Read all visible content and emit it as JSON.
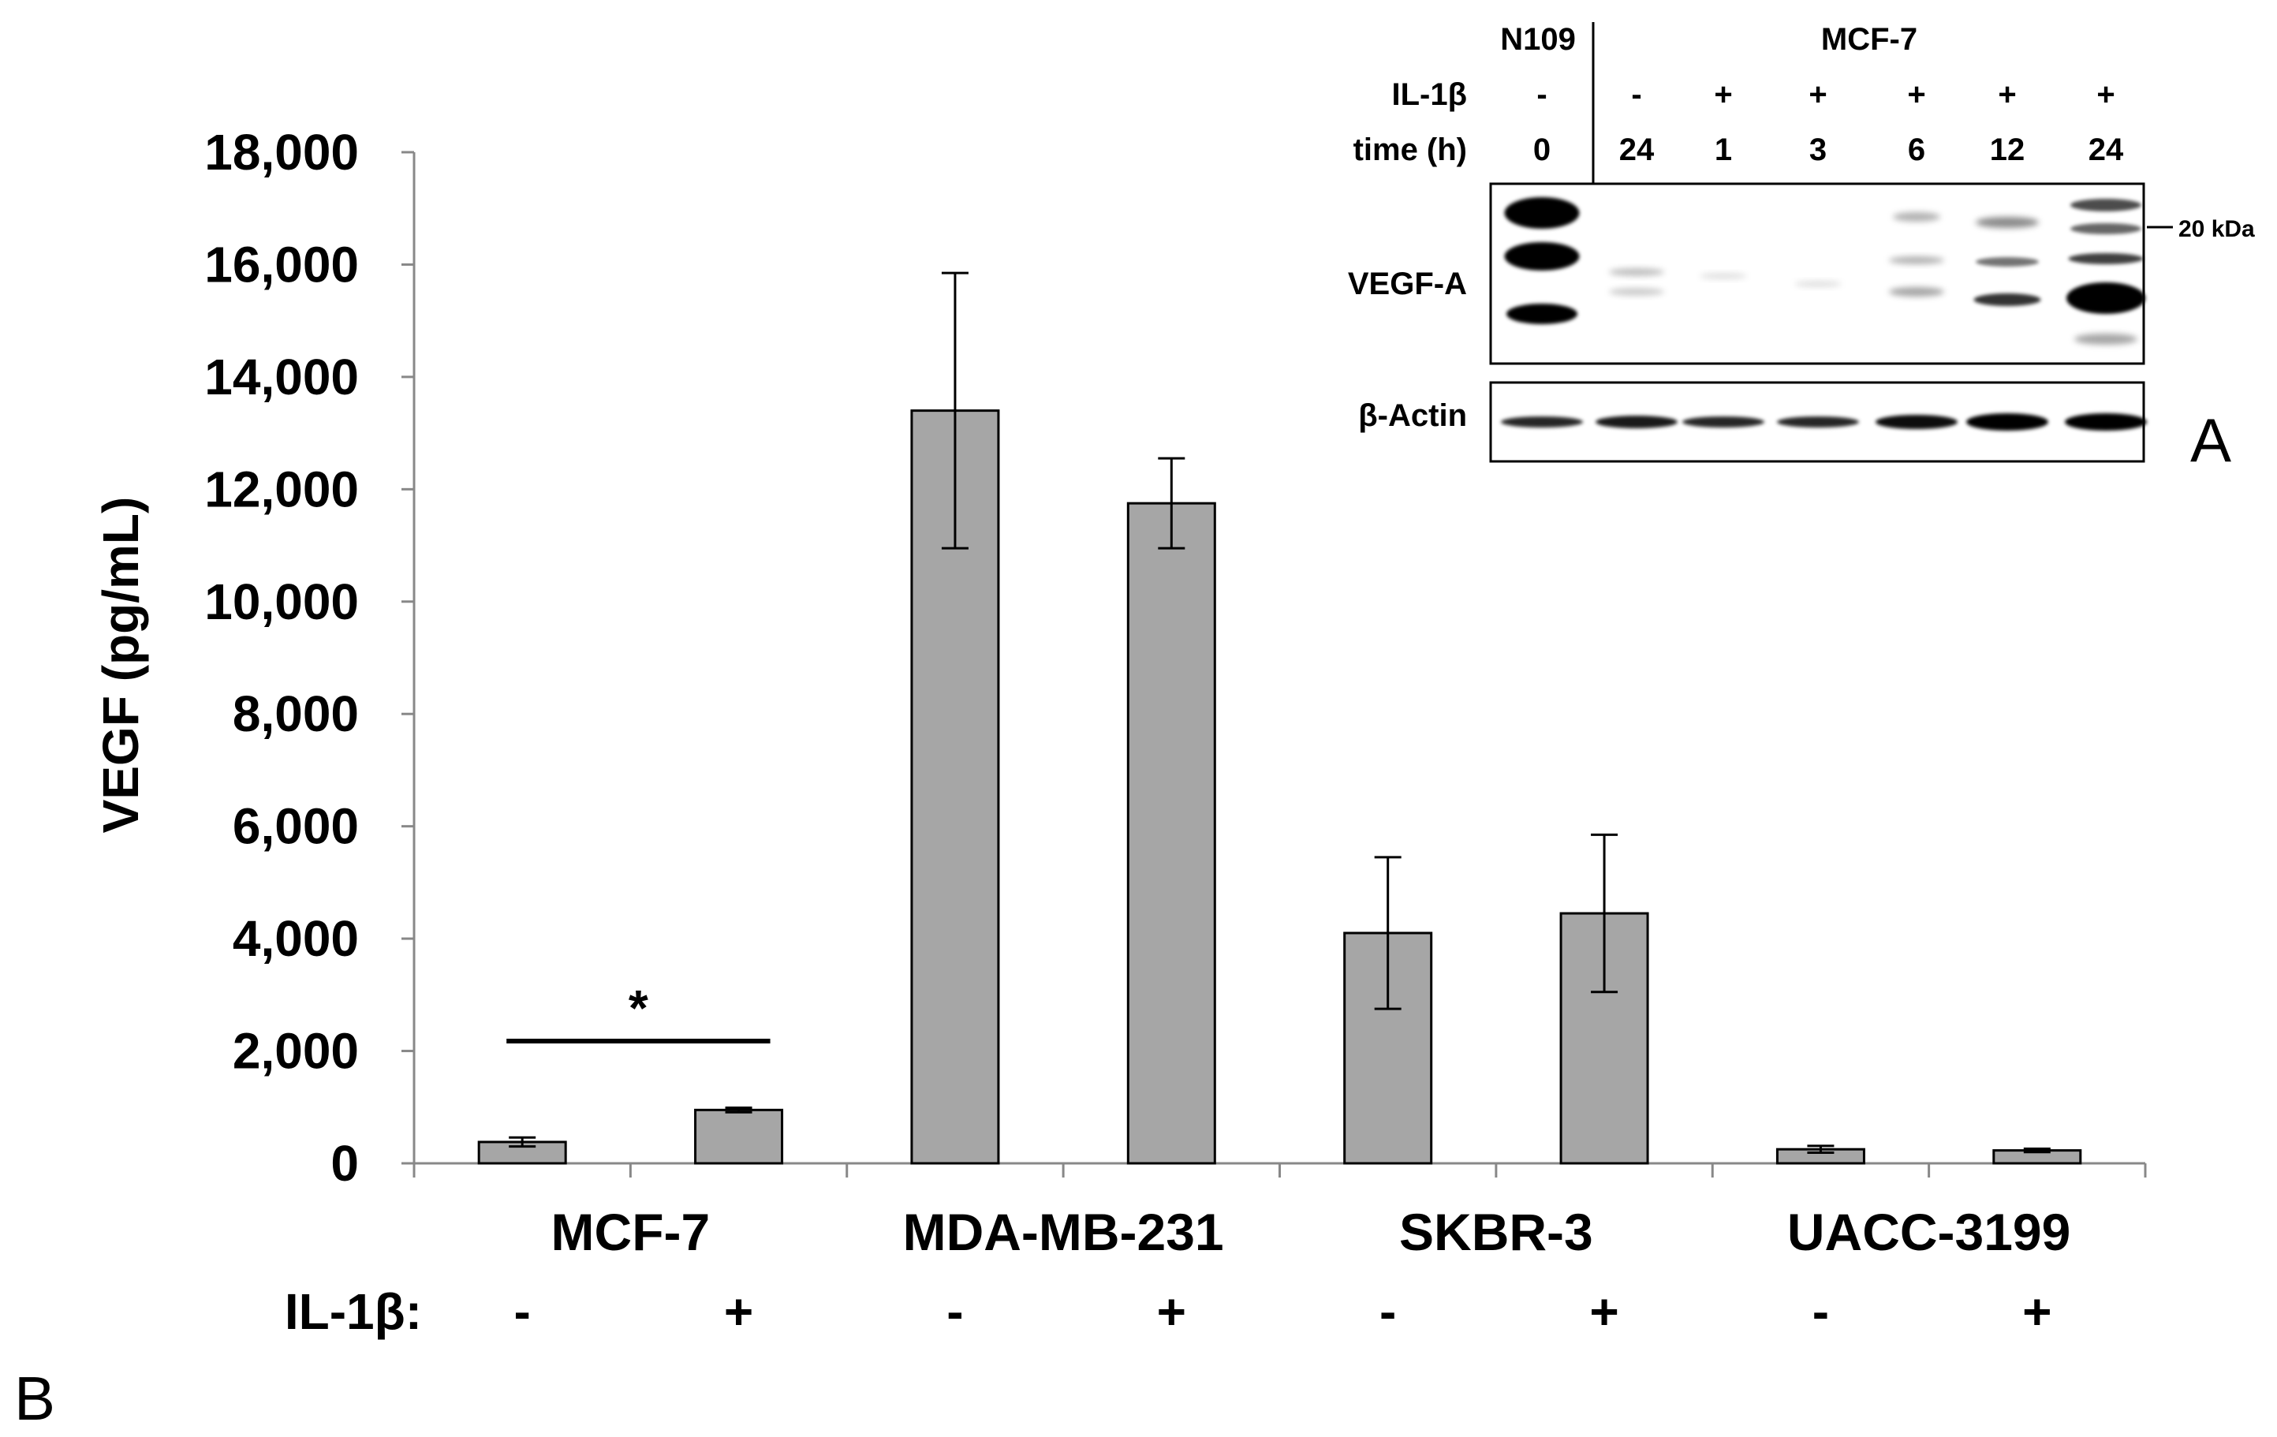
{
  "chart_data": {
    "type": "bar",
    "panel_label": "B",
    "ylabel": "VEGF (pg/mL)",
    "ylim": [
      0,
      18000
    ],
    "yticks": [
      "0",
      "2,000",
      "4,000",
      "6,000",
      "8,000",
      "10,000",
      "12,000",
      "14,000",
      "16,000",
      "18,000"
    ],
    "groups": [
      "MCF-7",
      "MDA-MB-231",
      "SKBR-3",
      "UACC-3199"
    ],
    "treatment_label": "IL-1β:",
    "treatments": [
      "-",
      "+",
      "-",
      "+",
      "-",
      "+",
      "-",
      "+"
    ],
    "values": [
      380,
      950,
      13400,
      11750,
      4100,
      4450,
      250,
      230
    ],
    "errors": [
      80,
      40,
      2450,
      800,
      1350,
      1400,
      60,
      30
    ],
    "bar_color": "#a6a6a6",
    "significance": {
      "marker": "*",
      "between": [
        0,
        1
      ]
    }
  },
  "blot": {
    "panel_label": "A",
    "header_n109": "N109",
    "header_mcf7": "MCF-7",
    "row_il1b_label": "IL-1β",
    "row_time_label": "time (h)",
    "il1b": [
      "-",
      "-",
      "+",
      "+",
      "+",
      "+",
      "+"
    ],
    "time": [
      "0",
      "24",
      "1",
      "3",
      "6",
      "12",
      "24"
    ],
    "vegf_label": "VEGF-A",
    "actin_label": "β-Actin",
    "marker": "20 kDa"
  }
}
